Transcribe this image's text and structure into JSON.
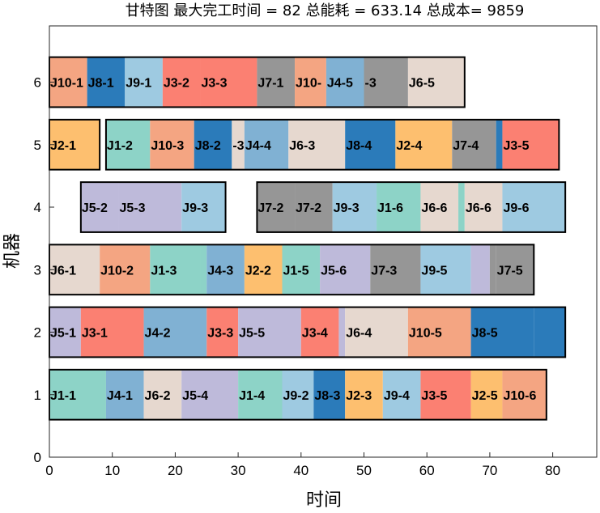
{
  "chart_data": {
    "type": "gantt",
    "title": "甘特图 最大完工时间 = 82 总能耗 = 633.14 总成本= 9859",
    "xlabel": "时间",
    "ylabel": "机器",
    "xlim": [
      0,
      87
    ],
    "ylim": [
      0,
      6.9
    ],
    "xticks": [
      0,
      10,
      20,
      30,
      40,
      50,
      60,
      70,
      80
    ],
    "yticks": [
      0,
      1,
      2,
      3,
      4,
      5,
      6
    ],
    "job_colors": {
      "J1": "#8dd3c7",
      "J2": "#fdbf6f",
      "J3": "#fb8072",
      "J4": "#80b1d3",
      "J5": "#bebada",
      "J6": "#e6d8cf",
      "J7": "#969696",
      "J8": "#2b7bba",
      "J9": "#9ecae1",
      "J10": "#f4a582"
    },
    "machines": [
      {
        "machine": 6,
        "ops": [
          {
            "label": "J10-1",
            "job": "J10",
            "start": 0,
            "end": 6
          },
          {
            "label": "J8-1",
            "job": "J8",
            "start": 6,
            "end": 12
          },
          {
            "label": "J9-1",
            "job": "J9",
            "start": 12,
            "end": 18
          },
          {
            "label": "J3-2",
            "job": "J3",
            "start": 18,
            "end": 24
          },
          {
            "label": "J3-3",
            "job": "J3",
            "start": 24,
            "end": 33
          },
          {
            "label": "J7-1",
            "job": "J7",
            "start": 33,
            "end": 39
          },
          {
            "label": "J10-",
            "job": "J10",
            "start": 39,
            "end": 44
          },
          {
            "label": "J4-5",
            "job": "J4",
            "start": 44,
            "end": 50
          },
          {
            "label": "-3",
            "job": "J7",
            "start": 50,
            "end": 57
          },
          {
            "label": "J6-5",
            "job": "J6",
            "start": 57,
            "end": 66
          }
        ]
      },
      {
        "machine": 5,
        "ops": [
          {
            "label": "J2-1",
            "job": "J2",
            "start": 0,
            "end": 8
          },
          {
            "label": "J1-2",
            "job": "J1",
            "start": 9,
            "end": 16
          },
          {
            "label": "J10-3",
            "job": "J10",
            "start": 16,
            "end": 23
          },
          {
            "label": "J8-2",
            "job": "J8",
            "start": 23,
            "end": 29
          },
          {
            "label": "-3",
            "job": "J6",
            "start": 29,
            "end": 31
          },
          {
            "label": "J4-4",
            "job": "J4",
            "start": 31,
            "end": 38
          },
          {
            "label": "J6-3",
            "job": "J6",
            "start": 38,
            "end": 47
          },
          {
            "label": "J8-4",
            "job": "J8",
            "start": 47,
            "end": 55
          },
          {
            "label": "J2-4",
            "job": "J2",
            "start": 55,
            "end": 64
          },
          {
            "label": "J7-4",
            "job": "J7",
            "start": 64,
            "end": 71
          },
          {
            "label": "",
            "job": "J8",
            "start": 71,
            "end": 72
          },
          {
            "label": "J3-5",
            "job": "J3",
            "start": 72,
            "end": 81
          }
        ]
      },
      {
        "machine": 4,
        "ops": [
          {
            "label": "J5-2",
            "job": "J5",
            "start": 5,
            "end": 11
          },
          {
            "label": "J5-3",
            "job": "J5",
            "start": 11,
            "end": 21
          },
          {
            "label": "J9-3",
            "job": "J9",
            "start": 21,
            "end": 28
          },
          {
            "label": "J7-2",
            "job": "J7",
            "start": 33,
            "end": 39
          },
          {
            "label": "J7-2",
            "job": "J7",
            "start": 39,
            "end": 45
          },
          {
            "label": "J9-3",
            "job": "J9",
            "start": 45,
            "end": 52
          },
          {
            "label": "J1-6",
            "job": "J1",
            "start": 52,
            "end": 59
          },
          {
            "label": "J6-6",
            "job": "J6",
            "start": 59,
            "end": 65
          },
          {
            "label": "",
            "job": "J1",
            "start": 65,
            "end": 66
          },
          {
            "label": "J6-6",
            "job": "J6",
            "start": 66,
            "end": 72
          },
          {
            "label": "J9-6",
            "job": "J9",
            "start": 72,
            "end": 82
          }
        ]
      },
      {
        "machine": 3,
        "ops": [
          {
            "label": "J6-1",
            "job": "J6",
            "start": 0,
            "end": 8
          },
          {
            "label": "J10-2",
            "job": "J10",
            "start": 8,
            "end": 16
          },
          {
            "label": "J1-3",
            "job": "J1",
            "start": 16,
            "end": 24
          },
          {
            "label": "",
            "job": "J1",
            "start": 24,
            "end": 25
          },
          {
            "label": "J4-3",
            "job": "J4",
            "start": 25,
            "end": 31
          },
          {
            "label": "J2-2",
            "job": "J2",
            "start": 31,
            "end": 37
          },
          {
            "label": "J1-5",
            "job": "J1",
            "start": 37,
            "end": 43
          },
          {
            "label": "J5-6",
            "job": "J5",
            "start": 43,
            "end": 51
          },
          {
            "label": "J7-3",
            "job": "J7",
            "start": 51,
            "end": 59
          },
          {
            "label": "J9-5",
            "job": "J9",
            "start": 59,
            "end": 67
          },
          {
            "label": "",
            "job": "J5",
            "start": 67,
            "end": 70
          },
          {
            "label": "",
            "job": "J7",
            "start": 70,
            "end": 71
          },
          {
            "label": "J7-5",
            "job": "J7",
            "start": 71,
            "end": 77
          }
        ]
      },
      {
        "machine": 2,
        "ops": [
          {
            "label": "J5-1",
            "job": "J5",
            "start": 0,
            "end": 5
          },
          {
            "label": "J3-1",
            "job": "J3",
            "start": 5,
            "end": 15
          },
          {
            "label": "J4-2",
            "job": "J4",
            "start": 15,
            "end": 25
          },
          {
            "label": "J3-3",
            "job": "J3",
            "start": 25,
            "end": 30
          },
          {
            "label": "J5-5",
            "job": "J5",
            "start": 30,
            "end": 40
          },
          {
            "label": "J3-4",
            "job": "J3",
            "start": 40,
            "end": 46
          },
          {
            "label": "",
            "job": "J5",
            "start": 46,
            "end": 47
          },
          {
            "label": "J6-4",
            "job": "J6",
            "start": 47,
            "end": 57
          },
          {
            "label": "J10-5",
            "job": "J10",
            "start": 57,
            "end": 67
          },
          {
            "label": "J8-5",
            "job": "J8",
            "start": 67,
            "end": 77
          },
          {
            "label": "",
            "job": "J8",
            "start": 77,
            "end": 82
          }
        ]
      },
      {
        "machine": 1,
        "ops": [
          {
            "label": "J1-1",
            "job": "J1",
            "start": 0,
            "end": 9
          },
          {
            "label": "J4-1",
            "job": "J4",
            "start": 9,
            "end": 15
          },
          {
            "label": "J6-2",
            "job": "J6",
            "start": 15,
            "end": 21
          },
          {
            "label": "J5-4",
            "job": "J5",
            "start": 21,
            "end": 30
          },
          {
            "label": "J1-4",
            "job": "J1",
            "start": 30,
            "end": 37
          },
          {
            "label": "J9-2",
            "job": "J9",
            "start": 37,
            "end": 42
          },
          {
            "label": "J8-3",
            "job": "J8",
            "start": 42,
            "end": 47
          },
          {
            "label": "J2-3",
            "job": "J2",
            "start": 47,
            "end": 53
          },
          {
            "label": "J9-4",
            "job": "J9",
            "start": 53,
            "end": 59
          },
          {
            "label": "J3-5",
            "job": "J3",
            "start": 59,
            "end": 67
          },
          {
            "label": "J2-5",
            "job": "J2",
            "start": 67,
            "end": 72
          },
          {
            "label": "J10-6",
            "job": "J10",
            "start": 72,
            "end": 79
          }
        ]
      }
    ]
  }
}
